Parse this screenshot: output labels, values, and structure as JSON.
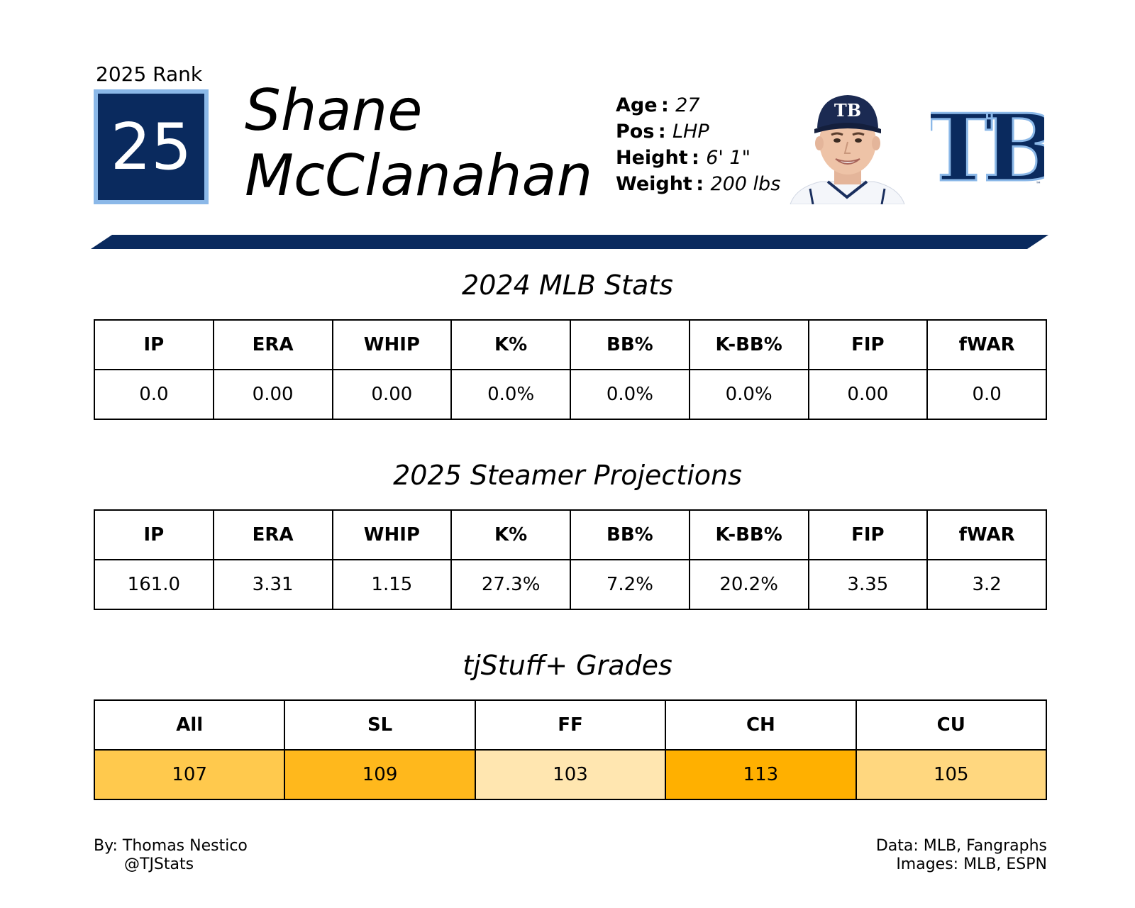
{
  "header": {
    "rank_label": "2025 Rank",
    "rank": "25",
    "first_name": "Shane",
    "last_name": "McClanahan",
    "bio": [
      {
        "key": "Age",
        "value": "27"
      },
      {
        "key": "Pos",
        "value": "LHP"
      },
      {
        "key": "Height",
        "value": "6' 1\""
      },
      {
        "key": "Weight",
        "value": "200 lbs"
      }
    ],
    "cap_logo_text": "TB",
    "team_logo_text": "TB",
    "team_logo_mark": "™",
    "colors": {
      "navy": "#0a2a5e",
      "light_blue": "#8bb8e8"
    }
  },
  "mlb_stats": {
    "title": "2024 MLB Stats",
    "headers": [
      "IP",
      "ERA",
      "WHIP",
      "K%",
      "BB%",
      "K-BB%",
      "FIP",
      "fWAR"
    ],
    "values": [
      "0.0",
      "0.00",
      "0.00",
      "0.0%",
      "0.0%",
      "0.0%",
      "0.00",
      "0.0"
    ]
  },
  "projections": {
    "title": "2025 Steamer Projections",
    "headers": [
      "IP",
      "ERA",
      "WHIP",
      "K%",
      "BB%",
      "K-BB%",
      "FIP",
      "fWAR"
    ],
    "values": [
      "161.0",
      "3.31",
      "1.15",
      "27.3%",
      "7.2%",
      "20.2%",
      "3.35",
      "3.2"
    ]
  },
  "stuff_grades": {
    "title": "tjStuff+ Grades",
    "headers": [
      "All",
      "SL",
      "FF",
      "CH",
      "CU"
    ],
    "values": [
      "107",
      "109",
      "103",
      "113",
      "105"
    ],
    "colors": [
      "#ffc94d",
      "#ffb81c",
      "#ffe6b0",
      "#ffb000",
      "#ffd77f"
    ]
  },
  "footer": {
    "author": "By: Thomas Nestico",
    "handle": "@TJStats",
    "data_source": "Data: MLB, Fangraphs",
    "image_source": "Images: MLB, ESPN"
  }
}
